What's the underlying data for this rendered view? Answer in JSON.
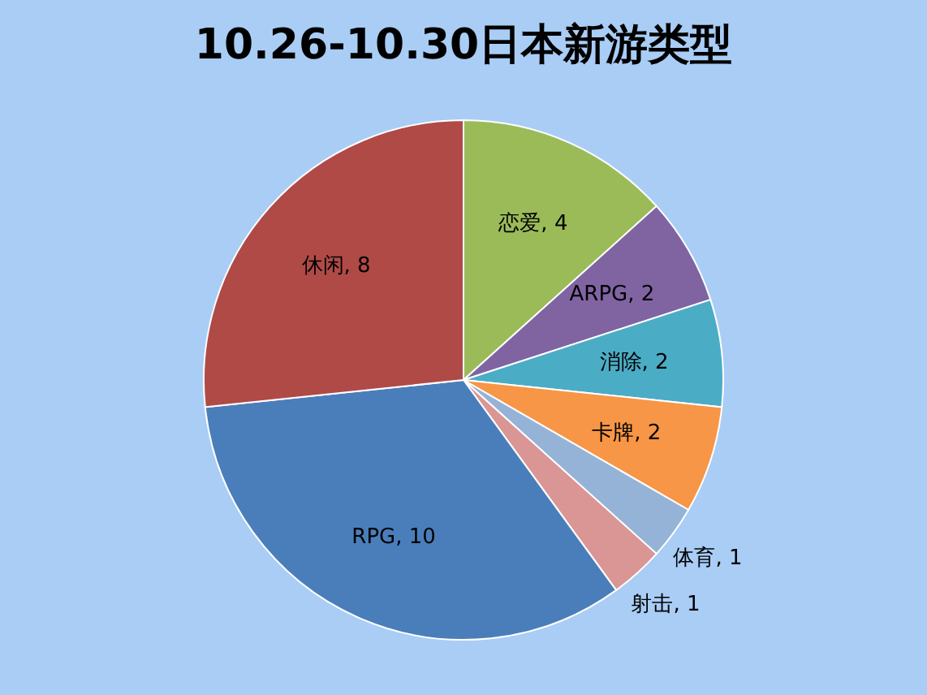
{
  "chart_data": {
    "type": "pie",
    "title": "10.26-10.30日本新游类型",
    "categories": [
      "恋爱",
      "ARPG",
      "消除",
      "卡牌",
      "体育",
      "射击",
      "RPG",
      "休闲"
    ],
    "values": [
      4,
      2,
      2,
      2,
      1,
      1,
      10,
      8
    ],
    "value_labels": [
      ", 4",
      ", 2",
      ", 2",
      ", 2",
      ", 1",
      ", 1",
      ", 10",
      ", 8"
    ],
    "colors": [
      "#9bbb59",
      "#8064a2",
      "#4bacc6",
      "#f79646",
      "#95b3d7",
      "#d99694",
      "#4a7ebb",
      "#b04a47"
    ],
    "legend": false
  }
}
